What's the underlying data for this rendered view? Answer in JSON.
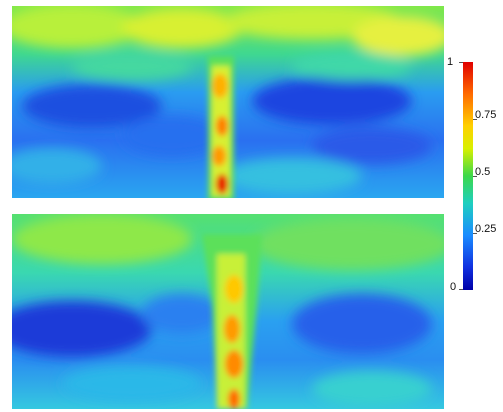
{
  "colorbar": {
    "ticks": [
      "1",
      "0.75",
      "0.5",
      "0.25",
      "0"
    ],
    "colors": [
      "#e00000",
      "#ff6a00",
      "#ffd000",
      "#3cd84a",
      "#1ecfc0",
      "#1a8cff",
      "#0000a8"
    ]
  },
  "panels": [
    "top",
    "bottom"
  ]
}
